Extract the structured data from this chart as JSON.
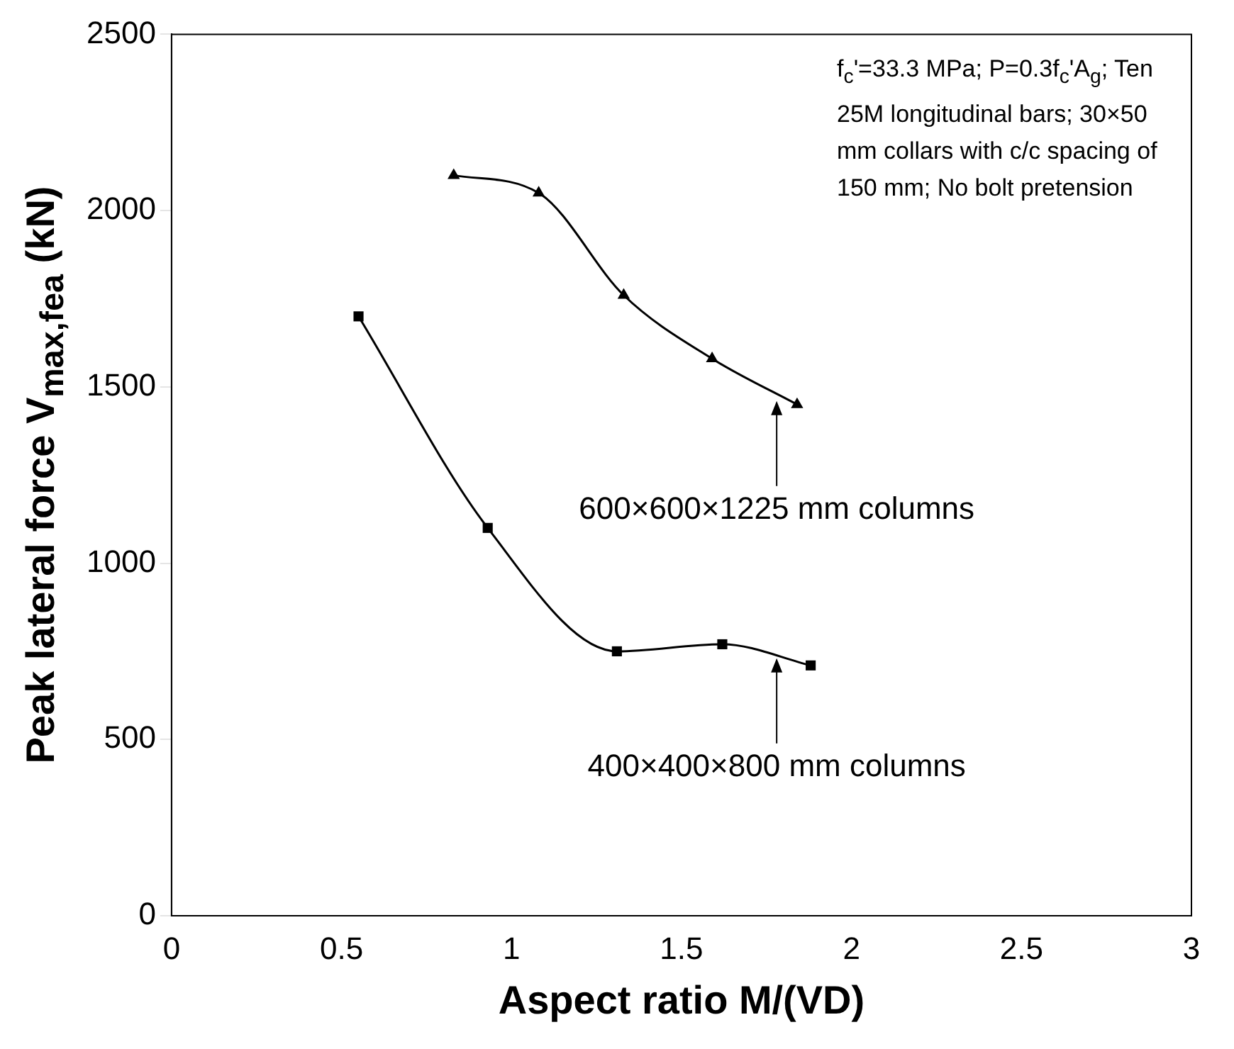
{
  "chart_data": {
    "type": "line",
    "xlabel": "Aspect ratio M/(VD)",
    "ylabel": "Peak lateral force V$_{max,fea}$ (kN)",
    "xlim": [
      0,
      3
    ],
    "xticks": [
      0,
      0.5,
      1,
      1.5,
      2,
      2.5,
      3
    ],
    "ylim": [
      0,
      2500
    ],
    "yticks": [
      0,
      500,
      1000,
      1500,
      2000,
      2500
    ],
    "grid": false,
    "legend": false,
    "line_style": "solid",
    "series": [
      {
        "color": "#000000",
        "marker": "square",
        "x": [
          0.55,
          0.93,
          1.31,
          1.62,
          1.88
        ],
        "values": [
          1700,
          1100,
          750,
          770,
          710
        ]
      },
      {
        "color": "#000000",
        "marker": "triangle",
        "x": [
          0.83,
          1.08,
          1.33,
          1.59,
          1.84
        ],
        "values": [
          2100,
          2050,
          1760,
          1580,
          1450
        ]
      }
    ],
    "annotations": [
      "f$_{c}$'=33.3 MPa; P=0.3f$_{c}$'A$_{g}$; Ten 25M longitudinal bars; 30×50 mm collars with c/c spacing of 150 mm; No bolt pretension",
      {
        "text": "600×600×1225 mm columns",
        "x": 1.78,
        "y": 1460
      },
      {
        "text": "400×400×800 mm columns",
        "x": 1.78,
        "y": 730
      }
    ]
  }
}
